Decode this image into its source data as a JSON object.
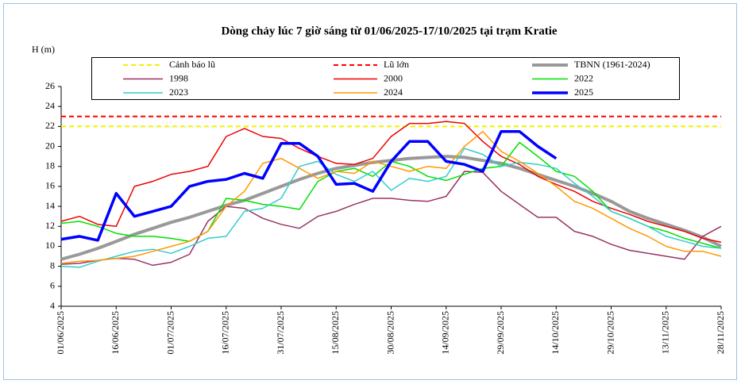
{
  "chart_data": {
    "type": "line",
    "title": "Dòng chảy lúc 7 giờ sáng từ 01/06/2025-17/10/2025 tại trạm Kratie",
    "y_label": "H (m)",
    "ylim": [
      4,
      26
    ],
    "yticks": [
      4,
      6,
      8,
      10,
      12,
      14,
      16,
      18,
      20,
      22,
      24,
      26
    ],
    "xlim": [
      "01/06/2025",
      "28/11/2025"
    ],
    "xticks": [
      "01/06/2025",
      "16/06/2025",
      "01/07/2025",
      "16/07/2025",
      "31/07/2025",
      "15/08/2025",
      "30/08/2025",
      "14/09/2025",
      "29/09/2025",
      "14/10/2025",
      "29/10/2025",
      "13/11/2025",
      "28/11/2025"
    ],
    "x": [
      "01/06/2025",
      "06/06/2025",
      "11/06/2025",
      "16/06/2025",
      "21/06/2025",
      "26/06/2025",
      "01/07/2025",
      "06/07/2025",
      "11/07/2025",
      "16/07/2025",
      "21/07/2025",
      "26/07/2025",
      "31/07/2025",
      "05/08/2025",
      "10/08/2025",
      "15/08/2025",
      "20/08/2025",
      "25/08/2025",
      "30/08/2025",
      "04/09/2025",
      "09/09/2025",
      "14/09/2025",
      "19/09/2025",
      "24/09/2025",
      "29/09/2025",
      "04/10/2025",
      "09/10/2025",
      "14/10/2025",
      "19/10/2025",
      "24/10/2025",
      "29/10/2025",
      "03/11/2025",
      "08/11/2025",
      "13/11/2025",
      "18/11/2025",
      "23/11/2025",
      "28/11/2025"
    ],
    "reference_lines": [
      {
        "name": "Cảnh báo lũ",
        "value": 22,
        "color": "#f2f200"
      },
      {
        "name": "Lũ lớn",
        "value": 23,
        "color": "#ff0000"
      }
    ],
    "series": [
      {
        "name": "TBNN (1961-2024)",
        "color": "#999999",
        "linewidth": 4,
        "values": [
          8.7,
          9.2,
          9.8,
          10.5,
          11.2,
          11.8,
          12.4,
          12.9,
          13.5,
          14.1,
          14.6,
          15.3,
          16.0,
          16.7,
          17.3,
          17.8,
          18.1,
          18.4,
          18.6,
          18.8,
          18.9,
          19.0,
          18.9,
          18.6,
          18.3,
          17.8,
          17.2,
          16.6,
          16.0,
          15.3,
          14.5,
          13.5,
          12.8,
          12.2,
          11.6,
          10.9,
          10.0
        ]
      },
      {
        "name": "1998",
        "color": "#993366",
        "linewidth": 1.5,
        "values": [
          8.2,
          8.3,
          8.6,
          8.8,
          8.7,
          8.1,
          8.4,
          9.2,
          12.5,
          14.0,
          13.8,
          12.8,
          12.2,
          11.8,
          13.0,
          13.5,
          14.2,
          14.8,
          14.8,
          14.6,
          14.5,
          15.0,
          17.5,
          17.4,
          15.5,
          14.2,
          12.9,
          12.9,
          11.5,
          11.0,
          10.2,
          9.6,
          9.3,
          9.0,
          8.7,
          11.0,
          12.0
        ]
      },
      {
        "name": "2000",
        "color": "#ee0000",
        "linewidth": 1.5,
        "values": [
          12.5,
          13.0,
          12.2,
          12.0,
          16.0,
          16.5,
          17.2,
          17.5,
          18.0,
          21.0,
          21.8,
          21.0,
          20.8,
          19.8,
          19.0,
          18.3,
          18.2,
          18.8,
          21.0,
          22.3,
          22.3,
          22.5,
          22.3,
          20.5,
          19.0,
          18.2,
          17.0,
          16.2,
          15.5,
          14.5,
          13.8,
          13.2,
          12.5,
          12.0,
          11.5,
          10.8,
          10.4
        ]
      },
      {
        "name": "2022",
        "color": "#00e000",
        "linewidth": 1.5,
        "values": [
          12.3,
          12.5,
          12.0,
          11.3,
          11.0,
          11.0,
          10.8,
          10.5,
          11.5,
          14.8,
          14.6,
          14.2,
          14.0,
          13.7,
          16.5,
          17.5,
          17.8,
          17.0,
          18.5,
          18.0,
          17.0,
          16.6,
          17.2,
          17.8,
          18.0,
          20.4,
          19.0,
          17.5,
          17.0,
          15.5,
          13.5,
          12.8,
          12.0,
          11.5,
          10.8,
          10.3,
          9.8
        ]
      },
      {
        "name": "2023",
        "color": "#33cccc",
        "linewidth": 1.5,
        "values": [
          8.0,
          7.9,
          8.5,
          9.0,
          9.5,
          9.7,
          9.3,
          10.0,
          10.8,
          11.0,
          13.5,
          13.8,
          14.8,
          18.0,
          18.5,
          17.2,
          16.5,
          17.5,
          15.6,
          16.8,
          16.5,
          17.0,
          19.8,
          19.2,
          18.0,
          18.4,
          18.2,
          17.8,
          16.3,
          15.0,
          13.5,
          12.8,
          12.0,
          11.0,
          10.5,
          10.0,
          9.8
        ]
      },
      {
        "name": "2024",
        "color": "#ff9900",
        "linewidth": 1.5,
        "values": [
          8.3,
          8.5,
          8.6,
          8.8,
          9.0,
          9.5,
          10.0,
          10.5,
          11.5,
          14.0,
          15.5,
          18.3,
          18.8,
          17.8,
          16.8,
          17.5,
          17.3,
          18.5,
          18.0,
          17.5,
          18.0,
          17.8,
          20.0,
          21.5,
          19.5,
          18.5,
          17.3,
          16.0,
          14.5,
          13.8,
          12.8,
          11.8,
          11.0,
          10.0,
          9.5,
          9.5,
          9.0
        ]
      },
      {
        "name": "2025",
        "color": "#0000ff",
        "linewidth": 3.5,
        "values": [
          10.7,
          11.0,
          10.6,
          15.3,
          13.0,
          13.5,
          14.0,
          16.0,
          16.5,
          16.7,
          17.3,
          16.8,
          20.3,
          20.3,
          19.0,
          16.2,
          16.3,
          15.5,
          18.5,
          20.5,
          20.5,
          18.5,
          18.2,
          17.5,
          21.5,
          21.5,
          20.0,
          18.8,
          null,
          null,
          null,
          null,
          null,
          null,
          null,
          null,
          null
        ]
      }
    ]
  }
}
